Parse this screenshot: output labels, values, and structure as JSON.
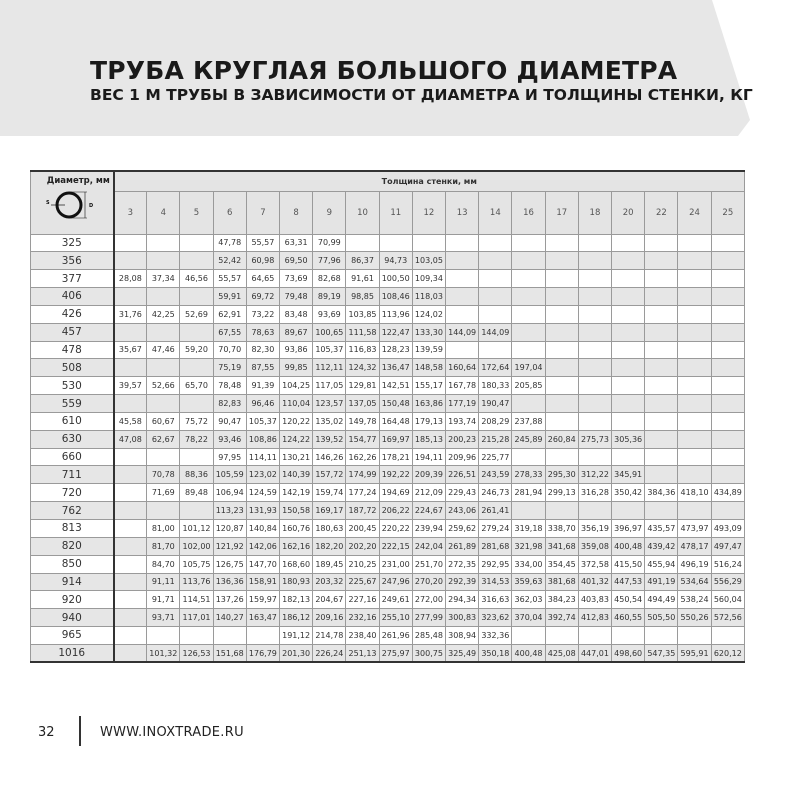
{
  "header": {
    "title": "ТРУБА КРУГЛАЯ БОЛЬШОГО ДИАМЕТРА",
    "subtitle": "ВЕС 1 М ТРУБЫ В ЗАВИСИМОСТИ ОТ ДИАМЕТРА И ТОЛЩИНЫ СТЕНКИ, КГ"
  },
  "table": {
    "diameter_header": "Диаметр, мм",
    "diagram_labels": {
      "s": "S",
      "d": "D"
    },
    "wall_header": "Толщина стенки, мм",
    "columns": [
      "3",
      "4",
      "5",
      "6",
      "7",
      "8",
      "9",
      "10",
      "11",
      "12",
      "13",
      "14",
      "16",
      "17",
      "18",
      "20",
      "22",
      "24",
      "25"
    ],
    "rows": [
      {
        "d": "325",
        "v": [
          "",
          "",
          "",
          "47,78",
          "55,57",
          "63,31",
          "70,99",
          "",
          "",
          "",
          "",
          "",
          "",
          "",
          "",
          "",
          "",
          "",
          ""
        ]
      },
      {
        "d": "356",
        "v": [
          "",
          "",
          "",
          "52,42",
          "60,98",
          "69,50",
          "77,96",
          "86,37",
          "94,73",
          "103,05",
          "",
          "",
          "",
          "",
          "",
          "",
          "",
          "",
          ""
        ]
      },
      {
        "d": "377",
        "v": [
          "28,08",
          "37,34",
          "46,56",
          "55,57",
          "64,65",
          "73,69",
          "82,68",
          "91,61",
          "100,50",
          "109,34",
          "",
          "",
          "",
          "",
          "",
          "",
          "",
          "",
          ""
        ]
      },
      {
        "d": "406",
        "v": [
          "",
          "",
          "",
          "59,91",
          "69,72",
          "79,48",
          "89,19",
          "98,85",
          "108,46",
          "118,03",
          "",
          "",
          "",
          "",
          "",
          "",
          "",
          "",
          ""
        ]
      },
      {
        "d": "426",
        "v": [
          "31,76",
          "42,25",
          "52,69",
          "62,91",
          "73,22",
          "83,48",
          "93,69",
          "103,85",
          "113,96",
          "124,02",
          "",
          "",
          "",
          "",
          "",
          "",
          "",
          "",
          ""
        ]
      },
      {
        "d": "457",
        "v": [
          "",
          "",
          "",
          "67,55",
          "78,63",
          "89,67",
          "100,65",
          "111,58",
          "122,47",
          "133,30",
          "144,09",
          "144,09",
          "",
          "",
          "",
          "",
          "",
          "",
          ""
        ]
      },
      {
        "d": "478",
        "v": [
          "35,67",
          "47,46",
          "59,20",
          "70,70",
          "82,30",
          "93,86",
          "105,37",
          "116,83",
          "128,23",
          "139,59",
          "",
          "",
          "",
          "",
          "",
          "",
          "",
          "",
          ""
        ]
      },
      {
        "d": "508",
        "v": [
          "",
          "",
          "",
          "75,19",
          "87,55",
          "99,85",
          "112,11",
          "124,32",
          "136,47",
          "148,58",
          "160,64",
          "172,64",
          "197,04",
          "",
          "",
          "",
          "",
          "",
          ""
        ]
      },
      {
        "d": "530",
        "v": [
          "39,57",
          "52,66",
          "65,70",
          "78,48",
          "91,39",
          "104,25",
          "117,05",
          "129,81",
          "142,51",
          "155,17",
          "167,78",
          "180,33",
          "205,85",
          "",
          "",
          "",
          "",
          "",
          ""
        ]
      },
      {
        "d": "559",
        "v": [
          "",
          "",
          "",
          "82,83",
          "96,46",
          "110,04",
          "123,57",
          "137,05",
          "150,48",
          "163,86",
          "177,19",
          "190,47",
          "",
          "",
          "",
          "",
          "",
          "",
          ""
        ]
      },
      {
        "d": "610",
        "v": [
          "45,58",
          "60,67",
          "75,72",
          "90,47",
          "105,37",
          "120,22",
          "135,02",
          "149,78",
          "164,48",
          "179,13",
          "193,74",
          "208,29",
          "237,88",
          "",
          "",
          "",
          "",
          "",
          ""
        ]
      },
      {
        "d": "630",
        "v": [
          "47,08",
          "62,67",
          "78,22",
          "93,46",
          "108,86",
          "124,22",
          "139,52",
          "154,77",
          "169,97",
          "185,13",
          "200,23",
          "215,28",
          "245,89",
          "260,84",
          "275,73",
          "305,36",
          "",
          "",
          ""
        ]
      },
      {
        "d": "660",
        "v": [
          "",
          "",
          "",
          "97,95",
          "114,11",
          "130,21",
          "146,26",
          "162,26",
          "178,21",
          "194,11",
          "209,96",
          "225,77",
          "",
          "",
          "",
          "",
          "",
          "",
          ""
        ]
      },
      {
        "d": "711",
        "v": [
          "",
          "70,78",
          "88,36",
          "105,59",
          "123,02",
          "140,39",
          "157,72",
          "174,99",
          "192,22",
          "209,39",
          "226,51",
          "243,59",
          "278,33",
          "295,30",
          "312,22",
          "345,91",
          "",
          "",
          ""
        ]
      },
      {
        "d": "720",
        "v": [
          "",
          "71,69",
          "89,48",
          "106,94",
          "124,59",
          "142,19",
          "159,74",
          "177,24",
          "194,69",
          "212,09",
          "229,43",
          "246,73",
          "281,94",
          "299,13",
          "316,28",
          "350,42",
          "384,36",
          "418,10",
          "434,89"
        ]
      },
      {
        "d": "762",
        "v": [
          "",
          "",
          "",
          "113,23",
          "131,93",
          "150,58",
          "169,17",
          "187,72",
          "206,22",
          "224,67",
          "243,06",
          "261,41",
          "",
          "",
          "",
          "",
          "",
          "",
          ""
        ]
      },
      {
        "d": "813",
        "v": [
          "",
          "81,00",
          "101,12",
          "120,87",
          "140,84",
          "160,76",
          "180,63",
          "200,45",
          "220,22",
          "239,94",
          "259,62",
          "279,24",
          "319,18",
          "338,70",
          "356,19",
          "396,97",
          "435,57",
          "473,97",
          "493,09"
        ]
      },
      {
        "d": "820",
        "v": [
          "",
          "81,70",
          "102,00",
          "121,92",
          "142,06",
          "162,16",
          "182,20",
          "202,20",
          "222,15",
          "242,04",
          "261,89",
          "281,68",
          "321,98",
          "341,68",
          "359,08",
          "400,48",
          "439,42",
          "478,17",
          "497,47"
        ]
      },
      {
        "d": "850",
        "v": [
          "",
          "84,70",
          "105,75",
          "126,75",
          "147,70",
          "168,60",
          "189,45",
          "210,25",
          "231,00",
          "251,70",
          "272,35",
          "292,95",
          "334,00",
          "354,45",
          "372,58",
          "415,50",
          "455,94",
          "496,19",
          "516,24"
        ]
      },
      {
        "d": "914",
        "v": [
          "",
          "91,11",
          "113,76",
          "136,36",
          "158,91",
          "180,93",
          "203,32",
          "225,67",
          "247,96",
          "270,20",
          "292,39",
          "314,53",
          "359,63",
          "381,68",
          "401,32",
          "447,53",
          "491,19",
          "534,64",
          "556,29"
        ]
      },
      {
        "d": "920",
        "v": [
          "",
          "91,71",
          "114,51",
          "137,26",
          "159,97",
          "182,13",
          "204,67",
          "227,16",
          "249,61",
          "272,00",
          "294,34",
          "316,63",
          "362,03",
          "384,23",
          "403,83",
          "450,54",
          "494,49",
          "538,24",
          "560,04"
        ]
      },
      {
        "d": "940",
        "v": [
          "",
          "93,71",
          "117,01",
          "140,27",
          "163,47",
          "186,12",
          "209,16",
          "232,16",
          "255,10",
          "277,99",
          "300,83",
          "323,62",
          "370,04",
          "392,74",
          "412,83",
          "460,55",
          "505,50",
          "550,26",
          "572,56"
        ]
      },
      {
        "d": "965",
        "v": [
          "",
          "",
          "",
          "",
          "",
          "191,12",
          "214,78",
          "238,40",
          "261,96",
          "285,48",
          "308,94",
          "332,36",
          "",
          "",
          "",
          "",
          "",
          "",
          ""
        ]
      },
      {
        "d": "1016",
        "v": [
          "",
          "101,32",
          "126,53",
          "151,68",
          "176,79",
          "201,30",
          "226,24",
          "251,13",
          "275,97",
          "300,75",
          "325,49",
          "350,18",
          "400,48",
          "425,08",
          "447,01",
          "498,60",
          "547,35",
          "595,91",
          "620,12"
        ]
      }
    ]
  },
  "footer": {
    "page": "32",
    "site": "WWW.INOXTRADE.RU"
  }
}
